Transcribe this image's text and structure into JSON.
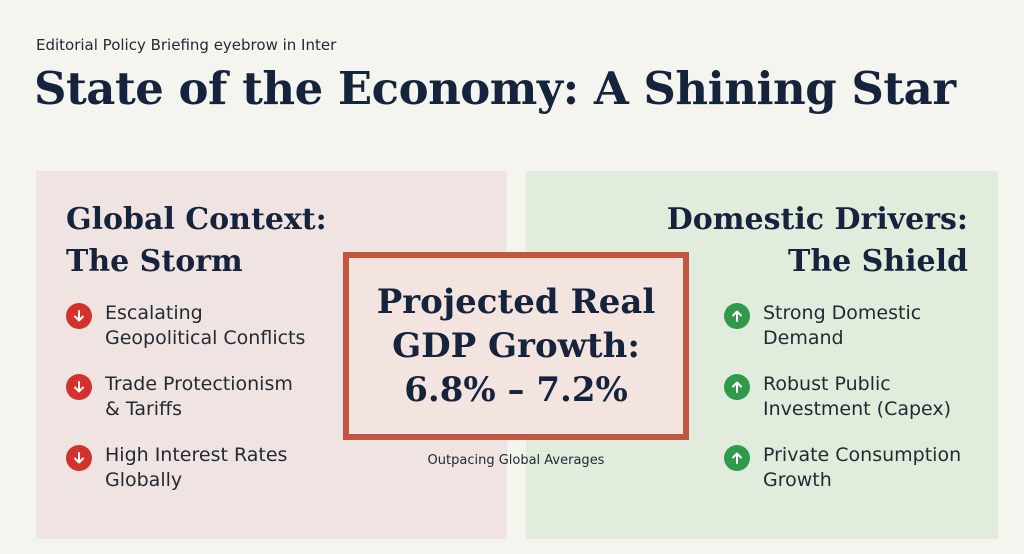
{
  "eyebrow": "Editorial Policy Briefing eyebrow in Inter",
  "title": "State of the Economy: A Shining Star",
  "left_panel": {
    "title_line1": "Global Context:",
    "title_line2": "The Storm",
    "icon": "arrow-down-icon",
    "icon_color": "#d3312e",
    "background": "#efe4e2",
    "items": [
      {
        "line1": "Escalating",
        "line2": "Geopolitical Conflicts"
      },
      {
        "line1": "Trade Protectionism",
        "line2": "& Tariffs"
      },
      {
        "line1": "High Interest Rates",
        "line2": "Globally"
      }
    ]
  },
  "right_panel": {
    "title_line1": "Domestic Drivers:",
    "title_line2": "The Shield",
    "icon": "arrow-up-icon",
    "icon_color": "#2f9a4a",
    "background": "#e2ecdc",
    "items": [
      {
        "line1": "Strong Domestic",
        "line2": "Demand"
      },
      {
        "line1": "Robust Public",
        "line2": "Investment (Capex)"
      },
      {
        "line1": "Private Consumption",
        "line2": "Growth"
      }
    ]
  },
  "callout": {
    "line1": "Projected Real",
    "line2": "GDP Growth:",
    "line3": "6.8% – 7.2%",
    "subtitle": "Outpacing Global Averages",
    "border_color": "#c0573e"
  }
}
